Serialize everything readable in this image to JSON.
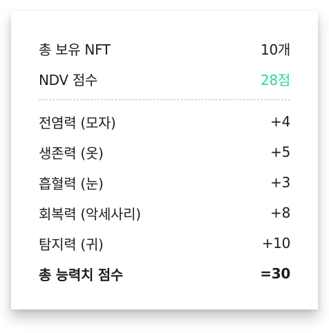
{
  "summary": {
    "total_nft": {
      "label": "총 보유 NFT",
      "value": "10개"
    },
    "ndv_score": {
      "label": "NDV 점수",
      "value": "28점",
      "accent_color": "#2bd4a4"
    }
  },
  "abilities": [
    {
      "label": "전염력 (모자)",
      "value": "+4"
    },
    {
      "label": "생존력 (옷)",
      "value": "+5"
    },
    {
      "label": "흡혈력 (눈)",
      "value": "+3"
    },
    {
      "label": "회복력 (악세사리)",
      "value": "+8"
    },
    {
      "label": "탐지력 (귀)",
      "value": "+10"
    }
  ],
  "total": {
    "label": "총 능력치 점수",
    "value": "=30"
  }
}
